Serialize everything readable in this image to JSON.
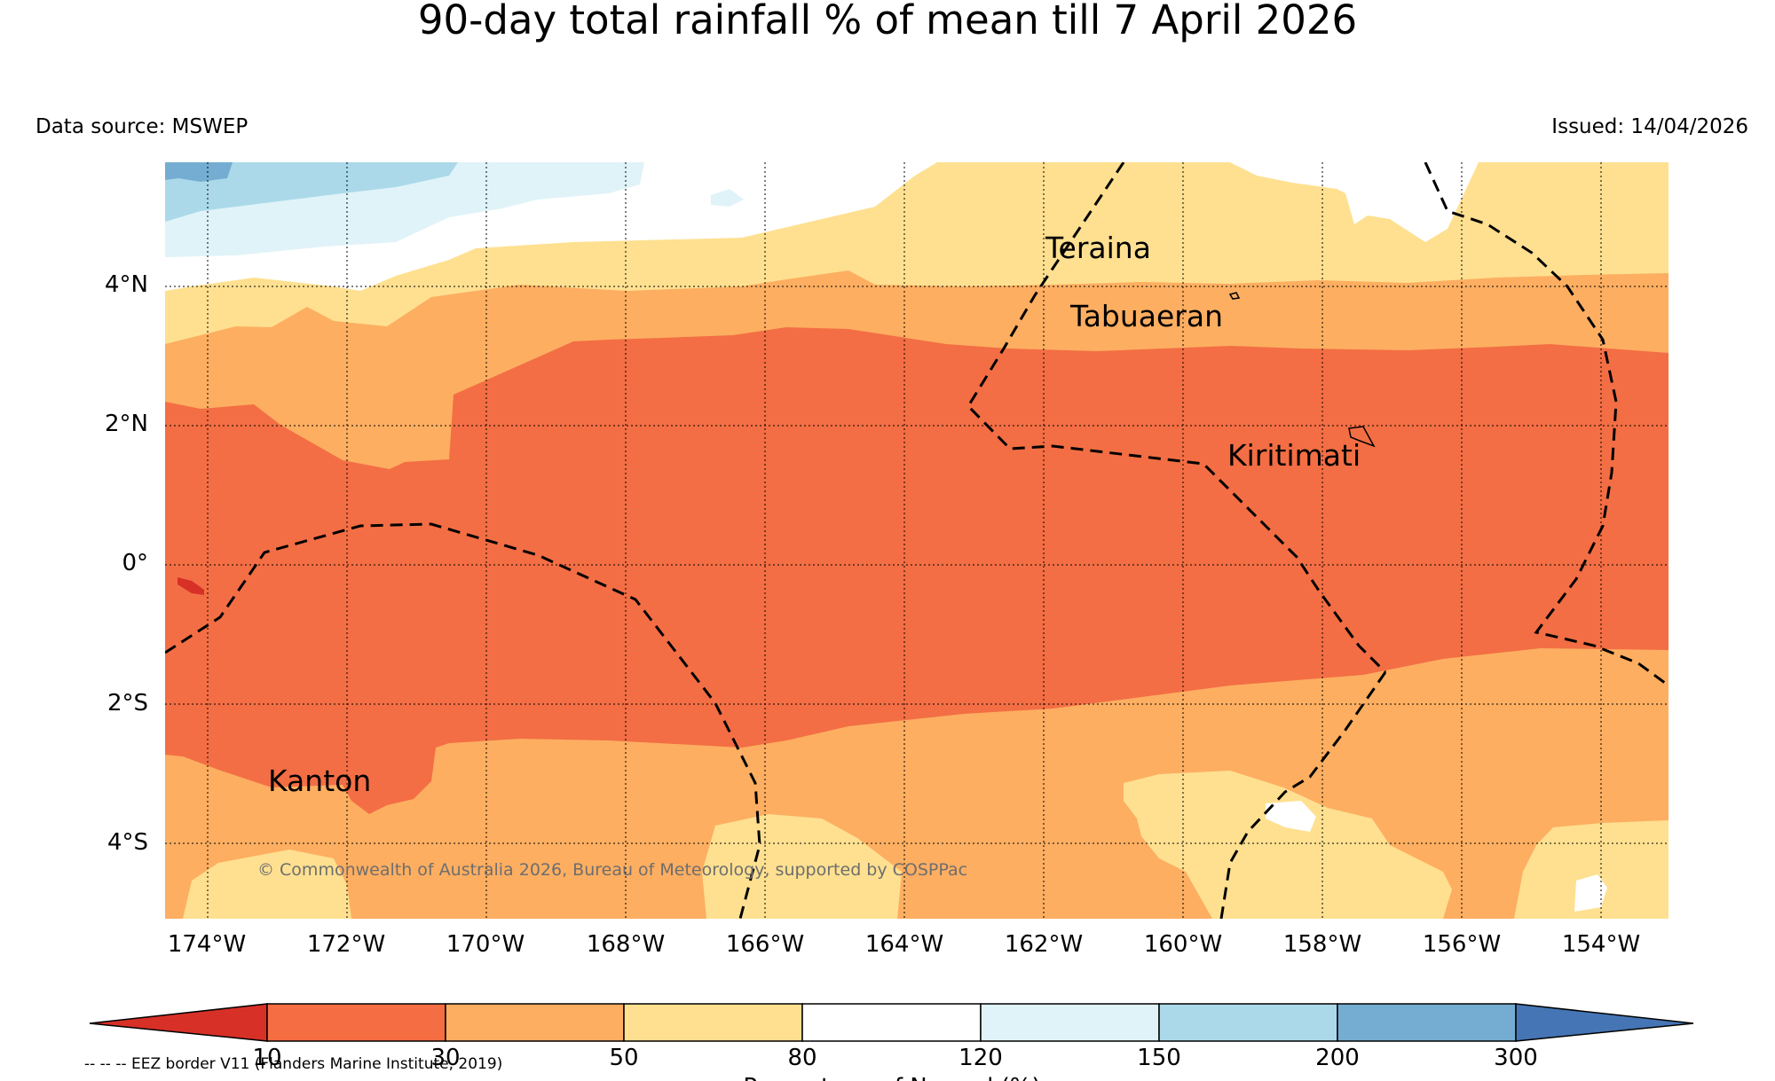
{
  "title": "90-day total rainfall % of mean till 7 April 2026",
  "data_source": "Data source: MSWEP",
  "issued": "Issued: 14/04/2026",
  "map": {
    "lat_ticks": [
      "4°N",
      "2°N",
      "0°",
      "2°S",
      "4°S"
    ],
    "lon_ticks": [
      "174°W",
      "172°W",
      "170°W",
      "168°W",
      "166°W",
      "164°W",
      "162°W",
      "160°W",
      "158°W",
      "156°W",
      "154°W"
    ],
    "places": [
      "Teraina",
      "Tabuaeran",
      "Kiritimati",
      "Kanton"
    ],
    "copyright": "© Commonwealth of Australia 2026, Bureau of Meteorology, supported by COSPPac",
    "eez_note": "-- -- -- EEZ border V11 (Flanders Marine Institute, 2019)"
  },
  "colorbar": {
    "boundaries": [
      "10",
      "30",
      "50",
      "80",
      "120",
      "150",
      "200",
      "300"
    ],
    "label": "Percentage of Normal (%)",
    "under_color": "#d73027",
    "over_color": "#4575b4",
    "colors": [
      "#f46d43",
      "#fdae61",
      "#fee090",
      "#ffffff",
      "#e0f3f8",
      "#abd9e9",
      "#74add1"
    ]
  },
  "colors": {
    "lt10": "#d73027",
    "c10_30": "#f46d43",
    "c30_50": "#fdae61",
    "c50_80": "#fee090",
    "c80_120": "#ffffff",
    "c120_150": "#e0f3f8",
    "c150_200": "#abd9e9",
    "c200_300": "#74add1"
  }
}
